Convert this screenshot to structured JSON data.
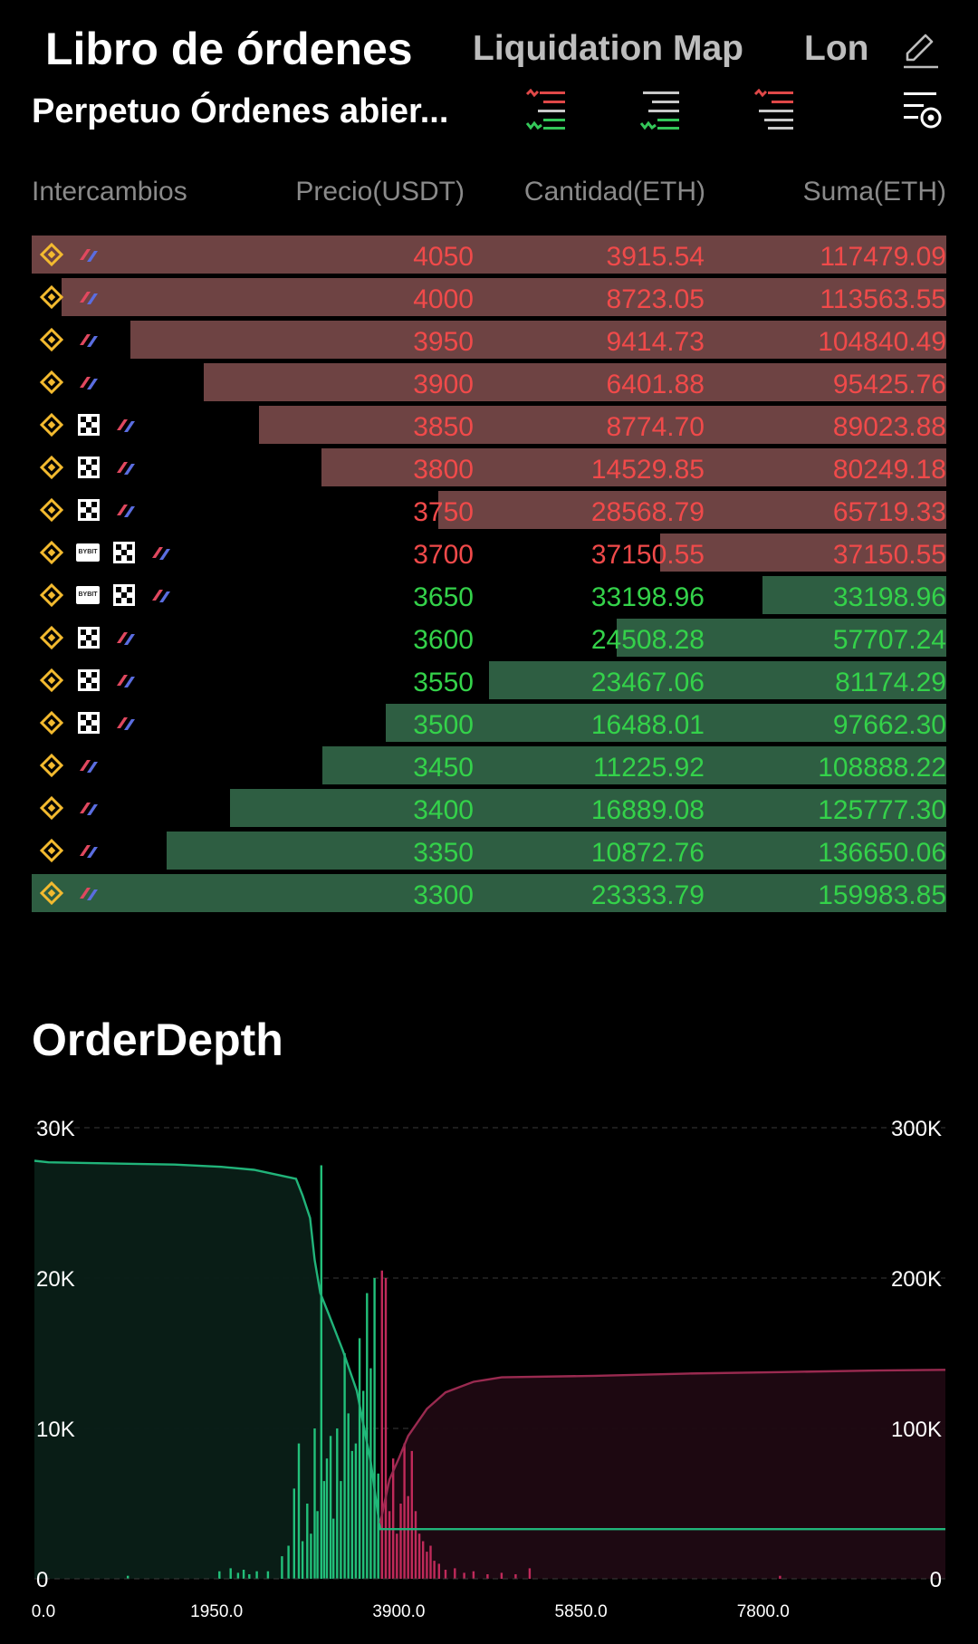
{
  "tabs": [
    {
      "label": "Libro de órdenes",
      "active": true
    },
    {
      "label": "Liquidation Map",
      "active": false
    },
    {
      "label": "Lon",
      "active": false
    }
  ],
  "subheader": {
    "title": "Perpetuo Órdenes abier..."
  },
  "toolbar_icons": [
    "asks-bids-list-icon",
    "bids-list-icon",
    "asks-list-icon",
    "settings-list-icon"
  ],
  "columns": {
    "exchanges": "Intercambios",
    "price": "Precio(USDT)",
    "quantity": "Cantidad(ETH)",
    "sum": "Suma(ETH)"
  },
  "colors": {
    "ask_text": "#f04a4a",
    "bid_text": "#34d24a",
    "ask_bar": "#6e4343",
    "bid_bar": "#2e5e42"
  },
  "orderbook": [
    {
      "side": "ask",
      "price": "4050",
      "qty": "3915.54",
      "sum": "117479.09",
      "depth": 1.0,
      "exchanges": [
        "binance",
        "bitget"
      ]
    },
    {
      "side": "ask",
      "price": "4000",
      "qty": "8723.05",
      "sum": "113563.55",
      "depth": 0.967,
      "exchanges": [
        "binance",
        "bitget"
      ]
    },
    {
      "side": "ask",
      "price": "3950",
      "qty": "9414.73",
      "sum": "104840.49",
      "depth": 0.892,
      "exchanges": [
        "binance",
        "bitget"
      ]
    },
    {
      "side": "ask",
      "price": "3900",
      "qty": "6401.88",
      "sum": "95425.76",
      "depth": 0.812,
      "exchanges": [
        "binance",
        "bitget"
      ]
    },
    {
      "side": "ask",
      "price": "3850",
      "qty": "8774.70",
      "sum": "89023.88",
      "depth": 0.752,
      "exchanges": [
        "binance",
        "okx",
        "bitget"
      ]
    },
    {
      "side": "ask",
      "price": "3800",
      "qty": "14529.85",
      "sum": "80249.18",
      "depth": 0.683,
      "exchanges": [
        "binance",
        "okx",
        "bitget"
      ]
    },
    {
      "side": "ask",
      "price": "3750",
      "qty": "28568.79",
      "sum": "65719.33",
      "depth": 0.555,
      "exchanges": [
        "binance",
        "okx",
        "bitget"
      ]
    },
    {
      "side": "ask",
      "price": "3700",
      "qty": "37150.55",
      "sum": "37150.55",
      "depth": 0.313,
      "exchanges": [
        "binance",
        "bybit",
        "okx",
        "bitget"
      ]
    },
    {
      "side": "bid",
      "price": "3650",
      "qty": "33198.96",
      "sum": "33198.96",
      "depth": 0.201,
      "exchanges": [
        "binance",
        "bybit",
        "okx",
        "bitget"
      ]
    },
    {
      "side": "bid",
      "price": "3600",
      "qty": "24508.28",
      "sum": "57707.24",
      "depth": 0.36,
      "exchanges": [
        "binance",
        "okx",
        "bitget"
      ]
    },
    {
      "side": "bid",
      "price": "3550",
      "qty": "23467.06",
      "sum": "81174.29",
      "depth": 0.5,
      "exchanges": [
        "binance",
        "okx",
        "bitget"
      ]
    },
    {
      "side": "bid",
      "price": "3500",
      "qty": "16488.01",
      "sum": "97662.30",
      "depth": 0.613,
      "exchanges": [
        "binance",
        "okx",
        "bitget"
      ]
    },
    {
      "side": "bid",
      "price": "3450",
      "qty": "11225.92",
      "sum": "108888.22",
      "depth": 0.682,
      "exchanges": [
        "binance",
        "bitget"
      ]
    },
    {
      "side": "bid",
      "price": "3400",
      "qty": "16889.08",
      "sum": "125777.30",
      "depth": 0.783,
      "exchanges": [
        "binance",
        "bitget"
      ]
    },
    {
      "side": "bid",
      "price": "3350",
      "qty": "10872.76",
      "sum": "136650.06",
      "depth": 0.853,
      "exchanges": [
        "binance",
        "bitget"
      ]
    },
    {
      "side": "bid",
      "price": "3300",
      "qty": "23333.79",
      "sum": "159983.85",
      "depth": 1.0,
      "exchanges": [
        "binance",
        "bitget"
      ]
    }
  ],
  "depth_section": {
    "title": "OrderDepth"
  },
  "chart_data": {
    "type": "area",
    "title": "OrderDepth",
    "xlabel": "",
    "ylabel": "",
    "xlim": [
      0,
      9750
    ],
    "x_ticks": [
      "0.0",
      "1950.0",
      "3900.0",
      "5850.0",
      "7800.0"
    ],
    "y_left_ticks": [
      "0",
      "10K",
      "20K",
      "30K"
    ],
    "y_right_ticks": [
      "0",
      "100K",
      "200K",
      "300K"
    ],
    "ylim_left": [
      0,
      30000
    ],
    "ylim_right": [
      0,
      300000
    ],
    "grid": true,
    "series": [
      {
        "side": "bid-cumulative",
        "axis": "right",
        "color": "#21b47a",
        "x": [
          0,
          150,
          1000,
          1500,
          2000,
          2350,
          2800,
          2870,
          2950,
          3000,
          3060,
          3150,
          3300,
          3450,
          3600,
          3650,
          3700,
          5000,
          9750
        ],
        "y": [
          278000,
          277000,
          276000,
          275500,
          274000,
          272000,
          266000,
          255000,
          240000,
          212000,
          190000,
          176000,
          152000,
          125000,
          78000,
          55000,
          33000,
          33000,
          33000
        ]
      },
      {
        "side": "ask-cumulative",
        "axis": "right",
        "color": "#9a2a50",
        "x": [
          3700,
          3800,
          3900,
          4000,
          4100,
          4200,
          4400,
          4700,
          5000,
          6000,
          7000,
          8000,
          9000,
          9750
        ],
        "y": [
          37000,
          66000,
          80000,
          95000,
          104000,
          113000,
          124000,
          131000,
          134000,
          135000,
          136500,
          137500,
          138500,
          139000
        ]
      },
      {
        "side": "bid-volume",
        "axis": "left",
        "color": "#22c07a",
        "x": [
          1000,
          1980,
          2100,
          2180,
          2240,
          2300,
          2380,
          2500,
          2650,
          2720,
          2780,
          2830,
          2870,
          2920,
          2960,
          3000,
          3030,
          3070,
          3100,
          3130,
          3170,
          3200,
          3240,
          3280,
          3320,
          3360,
          3400,
          3440,
          3480,
          3520,
          3560,
          3600,
          3640,
          3680
        ],
        "y": [
          200,
          500,
          700,
          400,
          600,
          300,
          500,
          500,
          1500,
          2200,
          6000,
          9000,
          2500,
          5000,
          3000,
          10000,
          4500,
          27500,
          6500,
          8000,
          9500,
          4000,
          10000,
          6500,
          15000,
          11000,
          8500,
          9000,
          16000,
          12500,
          19000,
          14000,
          20000,
          7000
        ]
      },
      {
        "side": "ask-volume",
        "axis": "left",
        "color": "#c02a5a",
        "x": [
          3720,
          3760,
          3800,
          3840,
          3880,
          3920,
          3960,
          4000,
          4040,
          4080,
          4120,
          4160,
          4200,
          4240,
          4280,
          4330,
          4400,
          4500,
          4600,
          4700,
          4850,
          5000,
          5150,
          5300,
          7980
        ],
        "y": [
          20500,
          20000,
          4500,
          8000,
          3000,
          5000,
          9000,
          5500,
          8500,
          4500,
          3000,
          2500,
          1800,
          2200,
          1200,
          1000,
          600,
          700,
          400,
          500,
          300,
          400,
          300,
          700,
          200
        ]
      }
    ]
  }
}
